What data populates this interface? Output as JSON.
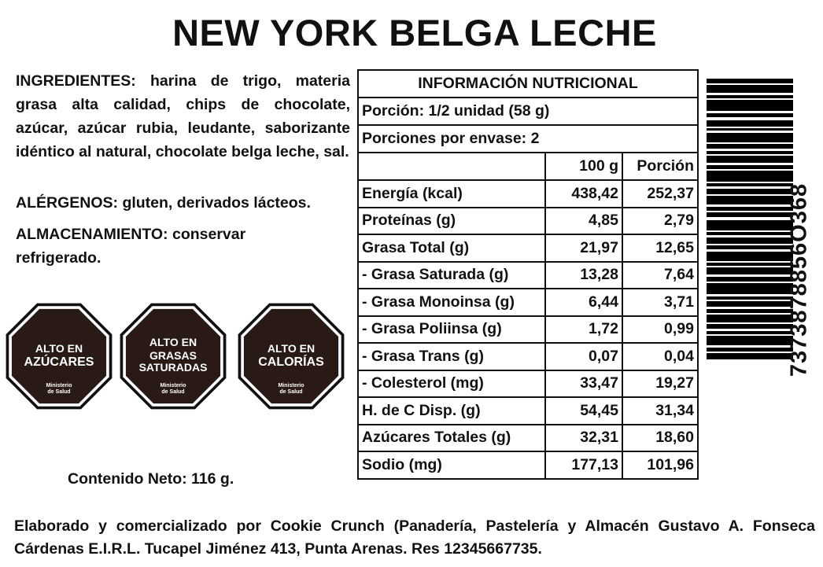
{
  "header": {
    "title": "NEW YORK BELGA LECHE"
  },
  "ingredients": {
    "label": "INGREDIENTES:",
    "text": "harina de trigo, materia grasa alta calidad, chips de chocolate, azúcar, azúcar rubia, leudante, saborizante idéntico al natural, chocolate belga leche, sal."
  },
  "allergens": {
    "label": "ALÉRGENOS:",
    "text": "gluten, derivados lácteos."
  },
  "storage": {
    "label": "ALMACENAMIENTO:",
    "text": "conservar refrigerado."
  },
  "seals": [
    {
      "top": "ALTO EN",
      "main": [
        "AZÚCARES"
      ],
      "footer": [
        "Ministerio",
        "de Salud"
      ]
    },
    {
      "top": "ALTO EN",
      "main": [
        "GRASAS",
        "SATURADAS"
      ],
      "footer": [
        "Ministerio",
        "de Salud"
      ]
    },
    {
      "top": "ALTO EN",
      "main": [
        "CALORÍAS"
      ],
      "footer": [
        "Ministerio",
        "de Salud"
      ]
    }
  ],
  "net_content": "Contenido Neto: 116 g.",
  "nutrition": {
    "title": "INFORMACIÓN NUTRICIONAL",
    "portion": "Porción: 1/2 unidad (58 g)",
    "servings": "Porciones por envase: 2",
    "columns": [
      "100 g",
      "Porción"
    ],
    "rows": [
      [
        "Energía (kcal)",
        "438,42",
        "252,37"
      ],
      [
        "Proteínas (g)",
        "4,85",
        "2,79"
      ],
      [
        "Grasa Total (g)",
        "21,97",
        "12,65"
      ],
      [
        "- Grasa Saturada (g)",
        "13,28",
        "7,64"
      ],
      [
        "- Grasa Monoinsa (g)",
        "6,44",
        "3,71"
      ],
      [
        "- Grasa Poliinsa (g)",
        "1,72",
        "0,99"
      ],
      [
        "- Grasa Trans (g)",
        "0,07",
        "0,04"
      ],
      [
        "- Colesterol (mg)",
        "33,47",
        "19,27"
      ],
      [
        "H. de C Disp. (g)",
        "54,45",
        "31,34"
      ],
      [
        "Azúcares Totales (g)",
        "32,31",
        "18,60"
      ],
      [
        "Sodio (mg)",
        "177,13",
        "101,96"
      ]
    ]
  },
  "barcode": {
    "number": "7373878856O368"
  },
  "footer": "Elaborado y comercializado por Cookie Crunch (Panadería, Pastelería y Almacén Gustavo A. Fonseca Cárdenas E.I.R.L. Tucapel Jiménez 413, Punta Arenas. Res 12345667735."
}
